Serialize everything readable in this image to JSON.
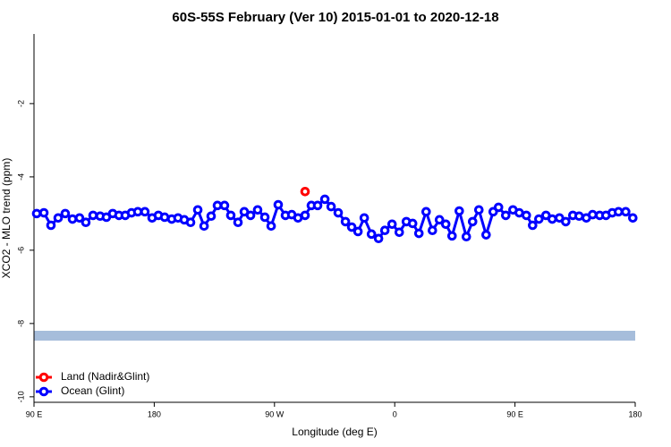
{
  "chart_data": {
    "type": "scatter-line",
    "title": "60S-55S February (Ver 10)   2015-01-01 to 2020-12-18",
    "x_label": "Longitude (deg E)",
    "y_label": "XCO2 - MLO trend (ppm)",
    "xlim": [
      90,
      540
    ],
    "ylim": [
      -10.15,
      -0.1
    ],
    "xticks": [
      {
        "value": 90,
        "label": "90 E"
      },
      180,
      {
        "value": 270,
        "label": "90 W"
      },
      {
        "value": 360,
        "label": "0"
      },
      {
        "value": 450,
        "label": "90 E"
      },
      {
        "value": 540,
        "label": "180"
      }
    ],
    "yticks": [
      -2,
      -4,
      -6,
      -8,
      -10
    ],
    "legend": "bottomleft",
    "series": [
      {
        "name": "Land (Nadir&Glint)",
        "color": "#ff0000",
        "x": [
          292.9
        ],
        "values": [
          -4.4
        ]
      },
      {
        "name": "Ocean (Glint)",
        "color": "#0000ff",
        "x": [
          92.0,
          97.4,
          102.7,
          108.1,
          113.4,
          118.8,
          124.1,
          128.8,
          134.2,
          139.5,
          144.2,
          148.9,
          153.6,
          158.3,
          163.0,
          167.7,
          173.0,
          178.4,
          183.1,
          187.8,
          193.1,
          197.8,
          202.5,
          207.2,
          212.6,
          217.3,
          222.6,
          227.3,
          232.6,
          237.3,
          242.7,
          247.4,
          252.1,
          257.4,
          262.8,
          267.5,
          272.8,
          278.2,
          282.9,
          287.6,
          292.9,
          297.6,
          302.3,
          307.7,
          312.4,
          317.7,
          323.1,
          327.8,
          332.5,
          337.2,
          342.6,
          347.9,
          352.6,
          358.0,
          363.4,
          368.7,
          373.4,
          378.1,
          383.5,
          388.2,
          393.5,
          398.2,
          402.9,
          408.3,
          413.6,
          418.3,
          423.0,
          428.4,
          433.7,
          437.7,
          443.1,
          448.5,
          453.2,
          458.5,
          463.2,
          467.9,
          473.2,
          477.9,
          483.3,
          488.0,
          493.3,
          498.0,
          503.4,
          508.1,
          513.4,
          518.1,
          522.8,
          527.5,
          532.9,
          538.2
        ],
        "values": [
          -5.0,
          -4.98,
          -5.32,
          -5.12,
          -5.0,
          -5.15,
          -5.12,
          -5.24,
          -5.05,
          -5.07,
          -5.1,
          -5.0,
          -5.05,
          -5.05,
          -4.98,
          -4.95,
          -4.95,
          -5.12,
          -5.05,
          -5.1,
          -5.15,
          -5.12,
          -5.17,
          -5.24,
          -4.9,
          -5.34,
          -5.07,
          -4.78,
          -4.78,
          -5.05,
          -5.24,
          -4.95,
          -5.05,
          -4.9,
          -5.1,
          -5.34,
          -4.76,
          -5.05,
          -5.03,
          -5.12,
          -5.05,
          -4.78,
          -4.78,
          -4.61,
          -4.81,
          -4.98,
          -5.22,
          -5.37,
          -5.49,
          -5.12,
          -5.56,
          -5.68,
          -5.46,
          -5.29,
          -5.51,
          -5.22,
          -5.27,
          -5.54,
          -4.95,
          -5.46,
          -5.17,
          -5.29,
          -5.61,
          -4.93,
          -5.63,
          -5.22,
          -4.9,
          -5.58,
          -4.95,
          -4.83,
          -5.05,
          -4.9,
          -4.98,
          -5.05,
          -5.32,
          -5.15,
          -5.05,
          -5.15,
          -5.12,
          -5.22,
          -5.05,
          -5.07,
          -5.12,
          -5.03,
          -5.05,
          -5.05,
          -4.98,
          -4.95,
          -4.95,
          -5.12
        ]
      }
    ]
  }
}
